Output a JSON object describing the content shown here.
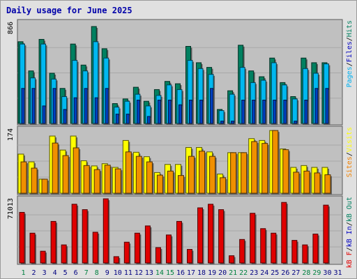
{
  "chart_data": {
    "type": "bar",
    "title": "Daily usage for June 2025",
    "categories": [
      "1",
      "2",
      "3",
      "4",
      "5",
      "6",
      "7",
      "8",
      "9",
      "10",
      "11",
      "12",
      "13",
      "14",
      "15",
      "16",
      "17",
      "18",
      "19",
      "20",
      "21",
      "22",
      "23",
      "24",
      "25",
      "26",
      "27",
      "28",
      "29",
      "30",
      "31"
    ],
    "category_colors": [
      "#008040",
      "#000080",
      "#000080",
      "#000080",
      "#000080",
      "#000080",
      "#008040",
      "#008040",
      "#000080",
      "#000080",
      "#000080",
      "#000080",
      "#000080",
      "#008040",
      "#008040",
      "#000080",
      "#000080",
      "#000080",
      "#000080",
      "#000080",
      "#008040",
      "#008040",
      "#000080",
      "#000080",
      "#000080",
      "#000080",
      "#000080",
      "#008040",
      "#008040",
      "#000080",
      "#000080"
    ],
    "panels": [
      {
        "id": "hits-files-pages",
        "max_label": "866",
        "ymax": 866,
        "series": [
          {
            "name": "Hits",
            "color": "#008060",
            "values": [
              700,
              450,
              720,
              430,
              300,
              680,
              500,
              830,
              640,
              170,
              210,
              310,
              190,
              290,
              360,
              340,
              660,
              520,
              480,
              120,
              280,
              670,
              450,
              400,
              560,
              350,
              230,
              560,
              520,
              520,
              0
            ]
          },
          {
            "name": "Files",
            "color": "#00b8f0",
            "values": [
              680,
              390,
              680,
              380,
              230,
              540,
              450,
              700,
              560,
              140,
              190,
              250,
              150,
              240,
              330,
              290,
              540,
              470,
              420,
              110,
              250,
              480,
              350,
              370,
              520,
              330,
              210,
              470,
              430,
              510,
              0
            ]
          },
          {
            "name": "Pages",
            "color": "#0040c0",
            "values": [
              300,
              300,
              150,
              300,
              120,
              220,
              300,
              220,
              300,
              80,
              80,
              200,
              60,
              200,
              200,
              160,
              200,
              200,
              300,
              20,
              20,
              200,
              200,
              200,
              200,
              200,
              20,
              200,
              300,
              300,
              0
            ]
          }
        ],
        "legend": [
          {
            "text": "Pages",
            "color": "#00b0f0"
          },
          {
            "text": "/",
            "color": "#000000"
          },
          {
            "text": "Files",
            "color": "#0000c0"
          },
          {
            "text": "/",
            "color": "#000000"
          },
          {
            "text": "Hits",
            "color": "#008060"
          }
        ]
      },
      {
        "id": "visits-sites",
        "max_label": "174",
        "ymax": 174,
        "series": [
          {
            "name": "Visits",
            "color": "#ffff00",
            "values": [
              106,
              85,
              38,
              155,
              117,
              155,
              88,
              74,
              80,
              70,
              143,
              111,
              99,
              56,
              78,
              78,
              124,
              124,
              112,
              52,
              110,
              110,
              148,
              143,
              170,
              120,
              70,
              75,
              70,
              70,
              0
            ]
          },
          {
            "name": "Sites",
            "color": "#f09000",
            "values": [
              85,
              68,
              38,
              136,
              102,
              123,
              75,
              64,
              76,
              66,
              112,
              100,
              85,
              49,
              60,
              48,
              100,
              114,
              100,
              42,
              110,
              110,
              140,
              135,
              170,
              118,
              57,
              60,
              55,
              50,
              0
            ]
          }
        ],
        "legend": [
          {
            "text": "Sites",
            "color": "#f08000"
          },
          {
            "text": "/",
            "color": "#000000"
          },
          {
            "text": "Visits",
            "color": "#ffff00"
          }
        ]
      },
      {
        "id": "kbytes",
        "max_label": "71013",
        "ymax": 71013,
        "series": [
          {
            "name": "kB F",
            "color": "#e00000",
            "values": [
              56000,
              33000,
              13000,
              46000,
              20000,
              65000,
              59000,
              34000,
              71000,
              7000,
              23000,
              33000,
              41000,
              17000,
              31000,
              46000,
              15000,
              61000,
              65000,
              59000,
              8000,
              26000,
              55000,
              38000,
              33000,
              67000,
              25000,
              20000,
              32000,
              64000,
              0
            ]
          }
        ],
        "legend": [
          {
            "text": "kB F",
            "color": "#e00000"
          },
          {
            "text": "/",
            "color": "#000000"
          },
          {
            "text": "kB In",
            "color": "#0000c0"
          },
          {
            "text": "/",
            "color": "#000000"
          },
          {
            "text": "kB Out",
            "color": "#008060"
          }
        ]
      }
    ]
  }
}
